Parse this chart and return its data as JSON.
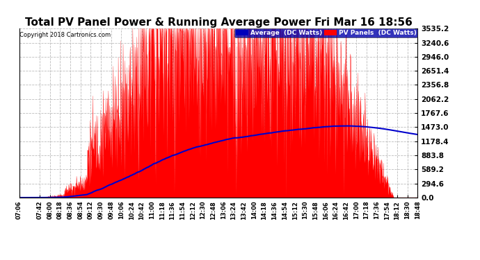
{
  "title": "Total PV Panel Power & Running Average Power Fri Mar 16 18:56",
  "copyright": "Copyright 2018 Cartronics.com",
  "legend_avg": "Average  (DC Watts)",
  "legend_pv": "PV Panels  (DC Watts)",
  "yticks": [
    0.0,
    294.6,
    589.2,
    883.8,
    1178.4,
    1473.0,
    1767.6,
    2062.2,
    2356.8,
    2651.4,
    2946.0,
    3240.6,
    3535.2
  ],
  "ymax": 3535.2,
  "ymin": 0.0,
  "bg_color": "#ffffff",
  "plot_bg": "#ffffff",
  "grid_color": "#bbbbbb",
  "bar_color": "#ff0000",
  "avg_line_color": "#0000cc",
  "title_fontsize": 11,
  "xtick_labels": [
    "07:06",
    "07:42",
    "08:00",
    "08:18",
    "08:36",
    "08:54",
    "09:12",
    "09:30",
    "09:48",
    "10:06",
    "10:24",
    "10:42",
    "11:00",
    "11:18",
    "11:36",
    "11:54",
    "12:12",
    "12:30",
    "12:48",
    "13:06",
    "13:24",
    "13:42",
    "14:00",
    "14:18",
    "14:36",
    "14:54",
    "15:12",
    "15:30",
    "15:48",
    "16:06",
    "16:24",
    "16:42",
    "17:00",
    "17:18",
    "17:36",
    "17:54",
    "18:12",
    "18:30",
    "18:48"
  ]
}
